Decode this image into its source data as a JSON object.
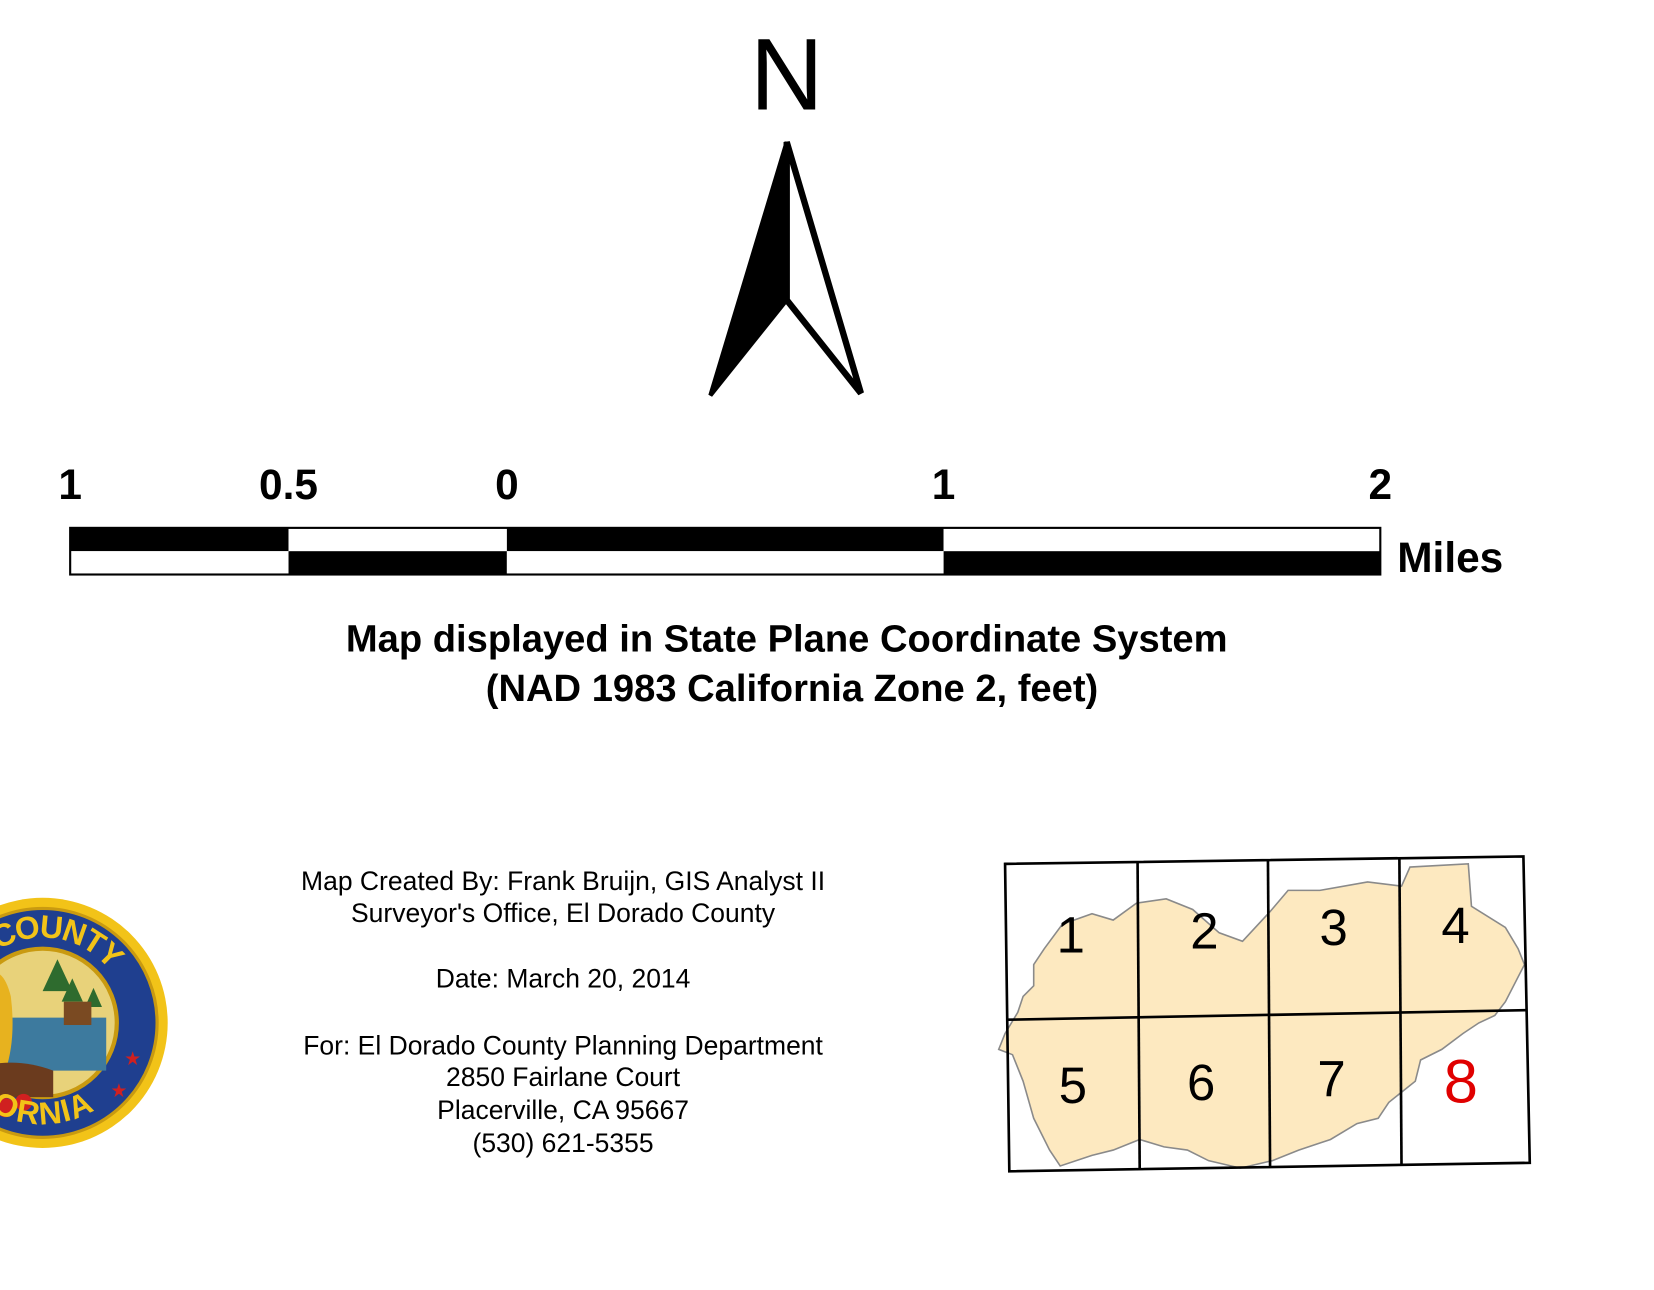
{
  "north_arrow": {
    "label": "N"
  },
  "scale_bar": {
    "labels": [
      "1",
      "0.5",
      "0",
      "1",
      "2"
    ],
    "units": "Miles"
  },
  "projection": {
    "lines": [
      "Map displayed in State Plane Coordinate System",
      "(NAD 1983 California Zone 2, feet)"
    ]
  },
  "seal": {
    "top_text": "O COUNTY",
    "bottom_text": "ORNIA"
  },
  "credits": {
    "lines": [
      "Map Created By:  Frank Bruijn, GIS Analyst II",
      "Surveyor's Office, El Dorado County",
      "Date:  March 20, 2014",
      "For:  El Dorado County Planning Department",
      "2850 Fairlane Court",
      "Placerville, CA 95667",
      "(530) 621-5355"
    ]
  },
  "index_map": {
    "fill": "#fde9c0",
    "cells": [
      {
        "label": "1",
        "color": "#000000"
      },
      {
        "label": "2",
        "color": "#000000"
      },
      {
        "label": "3",
        "color": "#000000"
      },
      {
        "label": "4",
        "color": "#000000"
      },
      {
        "label": "5",
        "color": "#000000"
      },
      {
        "label": "6",
        "color": "#000000"
      },
      {
        "label": "7",
        "color": "#000000"
      },
      {
        "label": "8",
        "color": "#e00000"
      }
    ]
  }
}
